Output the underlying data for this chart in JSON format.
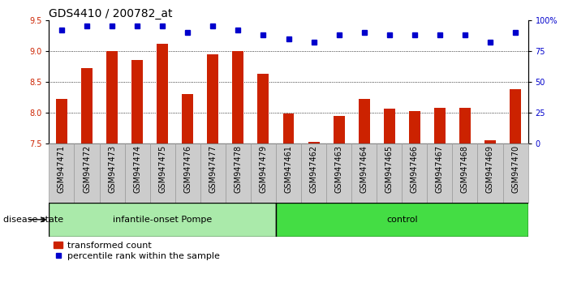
{
  "title": "GDS4410 / 200782_at",
  "samples": [
    "GSM947471",
    "GSM947472",
    "GSM947473",
    "GSM947474",
    "GSM947475",
    "GSM947476",
    "GSM947477",
    "GSM947478",
    "GSM947479",
    "GSM947461",
    "GSM947462",
    "GSM947463",
    "GSM947464",
    "GSM947465",
    "GSM947466",
    "GSM947467",
    "GSM947468",
    "GSM947469",
    "GSM947470"
  ],
  "bar_values": [
    8.22,
    8.72,
    9.0,
    8.85,
    9.12,
    8.3,
    8.95,
    9.0,
    8.63,
    7.98,
    7.52,
    7.95,
    8.22,
    8.07,
    8.02,
    8.08,
    8.08,
    7.55,
    8.38
  ],
  "dot_values": [
    92,
    95,
    95,
    95,
    95,
    90,
    95,
    92,
    88,
    85,
    82,
    88,
    90,
    88,
    88,
    88,
    88,
    82,
    90
  ],
  "ylim_left": [
    7.5,
    9.5
  ],
  "ylim_right": [
    0,
    100
  ],
  "yticks_left": [
    7.5,
    8.0,
    8.5,
    9.0,
    9.5
  ],
  "yticks_right": [
    0,
    25,
    50,
    75,
    100
  ],
  "ytick_labels_right": [
    "0",
    "25",
    "50",
    "75",
    "100%"
  ],
  "bar_color": "#cc2200",
  "dot_color": "#0000cc",
  "group1_label": "infantile-onset Pompe",
  "group2_label": "control",
  "group1_color": "#aaeaaa",
  "group2_color": "#44dd44",
  "group1_count": 9,
  "group2_count": 10,
  "disease_state_label": "disease state",
  "legend_bar_label": "transformed count",
  "legend_dot_label": "percentile rank within the sample",
  "title_fontsize": 10,
  "tick_fontsize": 7,
  "label_fontsize": 8,
  "xticklabel_gray": "#cccccc",
  "xticklabel_border": "#999999"
}
